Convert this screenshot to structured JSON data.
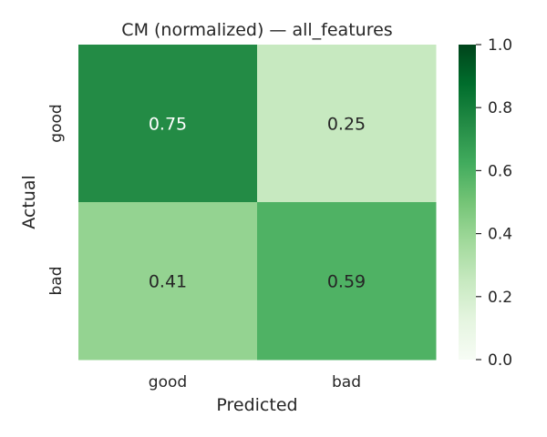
{
  "chart_data": {
    "type": "heatmap",
    "title": "CM (normalized) — all_features",
    "xlabel": "Predicted",
    "ylabel": "Actual",
    "x_categories": [
      "good",
      "bad"
    ],
    "y_categories": [
      "good",
      "bad"
    ],
    "values": [
      [
        0.75,
        0.25
      ],
      [
        0.41,
        0.59
      ]
    ],
    "value_labels": [
      [
        "0.75",
        "0.25"
      ],
      [
        "0.41",
        "0.59"
      ]
    ],
    "colormap": "Greens",
    "colorbar": {
      "range": [
        0.0,
        1.0
      ],
      "ticks": [
        "0.0",
        "0.2",
        "0.4",
        "0.6",
        "0.8",
        "1.0"
      ]
    },
    "grid": false
  }
}
